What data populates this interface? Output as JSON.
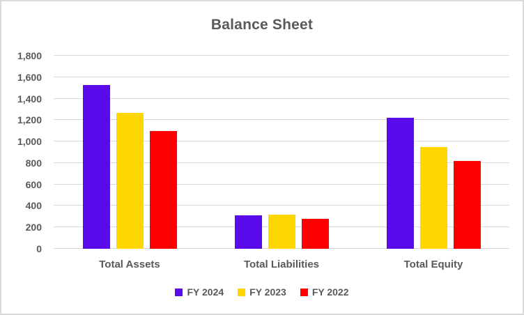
{
  "title": "Balance Sheet",
  "chart_data": {
    "type": "bar",
    "title": "Balance Sheet",
    "categories": [
      "Total Assets",
      "Total Liabilities",
      "Total Equity"
    ],
    "series": [
      {
        "name": "FY 2024",
        "color": "#5A0AEB",
        "values": [
          1530,
          310,
          1220
        ]
      },
      {
        "name": "FY 2023",
        "color": "#FFD700",
        "values": [
          1270,
          320,
          950
        ]
      },
      {
        "name": "FY 2022",
        "color": "#FF0000",
        "values": [
          1100,
          280,
          820
        ]
      }
    ],
    "xlabel": "",
    "ylabel": "",
    "ylim": [
      0,
      1800
    ],
    "ytick_step": 200,
    "yticks": [
      "0",
      "200",
      "400",
      "600",
      "800",
      "1,000",
      "1,200",
      "1,400",
      "1,600",
      "1,800"
    ],
    "grid": true,
    "legend_position": "bottom"
  },
  "colors": {
    "text": "#595959",
    "gridline": "#D9D9D9",
    "border": "#D9D9D9",
    "background": "#FFFFFF"
  }
}
